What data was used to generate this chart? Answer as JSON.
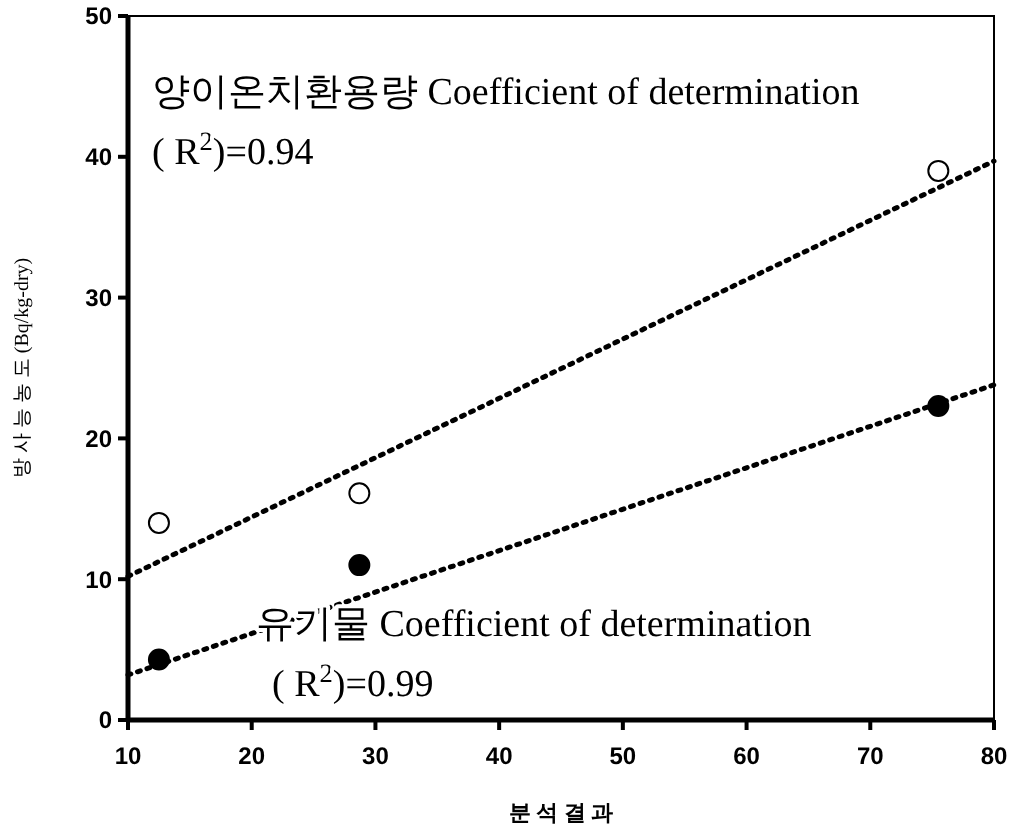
{
  "chart_data": {
    "type": "scatter",
    "xlabel": "분 석 결 과",
    "ylabel": "방 사 능 농 도 (Bq/kg-dry)",
    "xlim": [
      10,
      80
    ],
    "xticks": [
      10,
      20,
      30,
      40,
      50,
      60,
      70,
      80
    ],
    "ylim": [
      0,
      50
    ],
    "yticks": [
      0,
      10,
      20,
      30,
      40,
      50
    ],
    "grid": false,
    "series": [
      {
        "marker": "circle",
        "color": "#ffffff",
        "x": [
          12.5,
          28.7,
          75.5
        ],
        "values": [
          14,
          16.1,
          39
        ]
      },
      {
        "marker": "circle",
        "color": "#000000",
        "x": [
          12.5,
          28.7,
          75.5
        ],
        "values": [
          4.3,
          11,
          22.3
        ]
      },
      {
        "type": "line",
        "line_style": "dotted",
        "color": "#000000",
        "x": [
          10,
          80
        ],
        "values": [
          10.2,
          39.7
        ]
      },
      {
        "type": "line",
        "line_style": "dotted",
        "color": "#000000",
        "x": [
          10,
          80
        ],
        "values": [
          3.2,
          23.8
        ]
      }
    ],
    "annotations": [
      "양이온치환용량 Coefficient of determination ( R$^{2}$)=0.94",
      "유기물 Coefficient of determination ( R$^{2}$)=0.99"
    ]
  }
}
